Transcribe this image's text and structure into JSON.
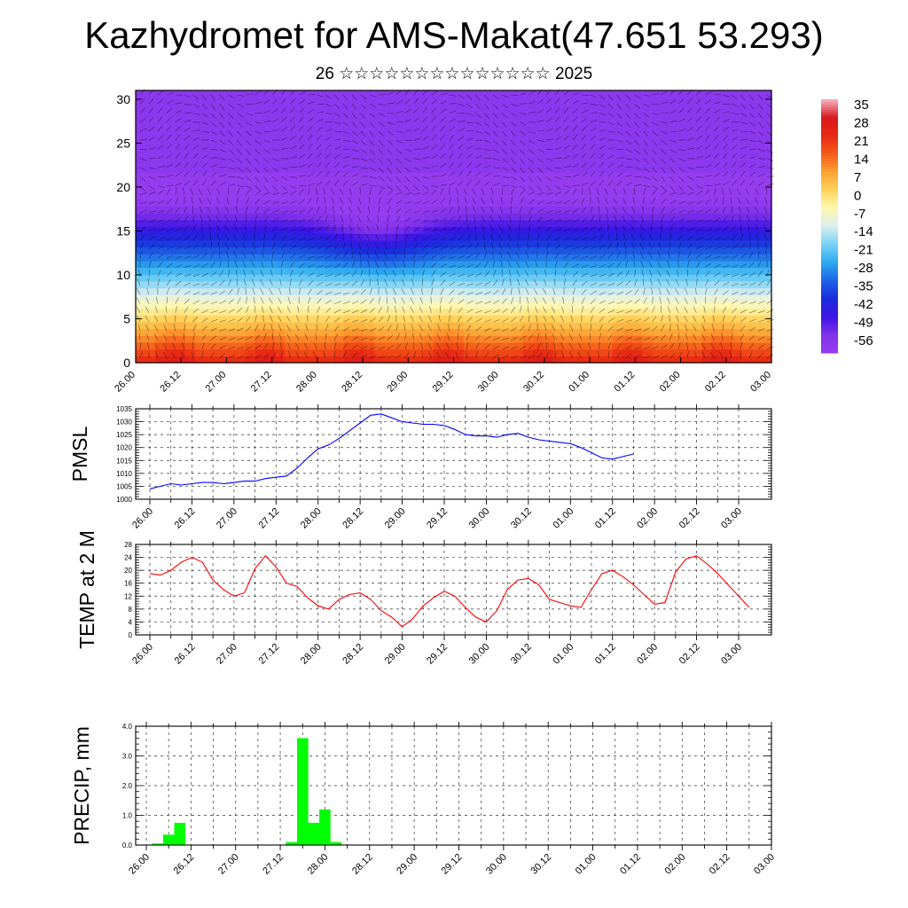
{
  "title": "Kazhydromet for AMS-Makat(47.651 53.293)",
  "subtitle": "26 ☆☆☆☆☆☆☆☆☆☆☆☆☆☆ 2025",
  "colors": {
    "pmsl_line": "#0000ff",
    "temp_line": "#ff0000",
    "precip_bar": "#00ff00"
  },
  "chart_data": [
    {
      "type": "heatmap",
      "name": "cross-section",
      "x_tick_labels": [
        "26.00",
        "26.12",
        "27.00",
        "27.12",
        "28.00",
        "28.12",
        "29.00",
        "29.12",
        "30.00",
        "30.12",
        "01.00",
        "01.12",
        "02.00",
        "02.12",
        "03.00"
      ],
      "y_tick_labels": [
        "0",
        "5",
        "10",
        "15",
        "20",
        "25",
        "30"
      ],
      "ylim": [
        0,
        31
      ],
      "colorbar_labels": [
        "35",
        "28",
        "21",
        "14",
        "7",
        "0",
        "-7",
        "-14",
        "-21",
        "-28",
        "-35",
        "-42",
        "-49",
        "-56"
      ],
      "colorbar_range": [
        -63,
        35
      ]
    },
    {
      "type": "line",
      "ylabel": "PMSL",
      "x_tick_labels": [
        "26.00",
        "26.12",
        "27.00",
        "27.12",
        "28.00",
        "28.12",
        "29.00",
        "29.12",
        "30.00",
        "30.12",
        "01.00",
        "01.12",
        "02.00",
        "02.12",
        "03.00"
      ],
      "y_tick_labels": [
        "1000",
        "1005",
        "1010",
        "1015",
        "1020",
        "1025",
        "1030",
        "1035"
      ],
      "ylim": [
        1000,
        1035
      ],
      "step_hours": 3,
      "values": [
        1004,
        1005,
        1006,
        1005.5,
        1006,
        1006.5,
        1006.5,
        1006,
        1006.5,
        1007,
        1007,
        1008,
        1008.5,
        1009,
        1012,
        1016,
        1019.5,
        1021,
        1023.5,
        1026.5,
        1029.5,
        1032.5,
        1033,
        1031.5,
        1030,
        1029.5,
        1029,
        1029,
        1028.5,
        1027,
        1025,
        1024.5,
        1024.5,
        1024,
        1025,
        1025.5,
        1024,
        1023,
        1022.5,
        1022,
        1021.5,
        1020,
        1018,
        1016,
        1015.5,
        1016.5,
        1017.5
      ]
    },
    {
      "type": "line",
      "ylabel": "TEMP at 2 M",
      "x_tick_labels": [
        "26.00",
        "26.12",
        "27.00",
        "27.12",
        "28.00",
        "28.12",
        "29.00",
        "29.12",
        "30.00",
        "30.12",
        "01.00",
        "01.12",
        "02.00",
        "02.12",
        "03.00"
      ],
      "y_tick_labels": [
        "0",
        "4",
        "8",
        "12",
        "16",
        "20",
        "24",
        "28"
      ],
      "ylim": [
        0,
        28
      ],
      "step_hours": 3,
      "values": [
        19,
        18.5,
        20,
        22.5,
        24,
        22.5,
        17,
        14,
        12,
        13,
        20.5,
        24.5,
        21,
        16,
        15,
        11.5,
        9,
        8,
        11,
        12.5,
        13,
        11,
        7.5,
        5.5,
        2.5,
        5,
        9,
        11.5,
        13.5,
        12,
        8.5,
        5.5,
        4,
        7.5,
        14,
        17,
        17.5,
        15.5,
        11,
        10,
        9,
        8.5,
        14,
        19,
        20,
        18,
        15.5,
        12.5,
        9.5,
        10,
        19.5,
        23.5,
        24.5,
        22,
        19,
        15.5,
        12,
        8.5
      ]
    },
    {
      "type": "bar",
      "ylabel": "PRECIP, mm",
      "x_tick_labels": [
        "26.00",
        "26.12",
        "27.00",
        "27.12",
        "28.00",
        "28.12",
        "29.00",
        "29.12",
        "30.00",
        "30.12",
        "01.00",
        "01.12",
        "02.00",
        "02.12",
        "03.00"
      ],
      "y_tick_labels": [
        "0.0",
        "1.0",
        "2.0",
        "3.0",
        "4.0"
      ],
      "ylim": [
        0,
        4
      ],
      "step_hours": 3,
      "values": [
        0,
        0.05,
        0.35,
        0.75,
        0,
        0,
        0,
        0,
        0,
        0,
        0,
        0,
        0,
        0.1,
        3.6,
        0.75,
        1.2,
        0.1,
        0,
        0,
        0,
        0,
        0,
        0,
        0,
        0,
        0,
        0,
        0,
        0,
        0,
        0,
        0,
        0,
        0,
        0,
        0,
        0,
        0,
        0,
        0,
        0,
        0,
        0,
        0,
        0,
        0,
        0,
        0,
        0,
        0,
        0,
        0,
        0,
        0,
        0,
        0
      ]
    }
  ]
}
